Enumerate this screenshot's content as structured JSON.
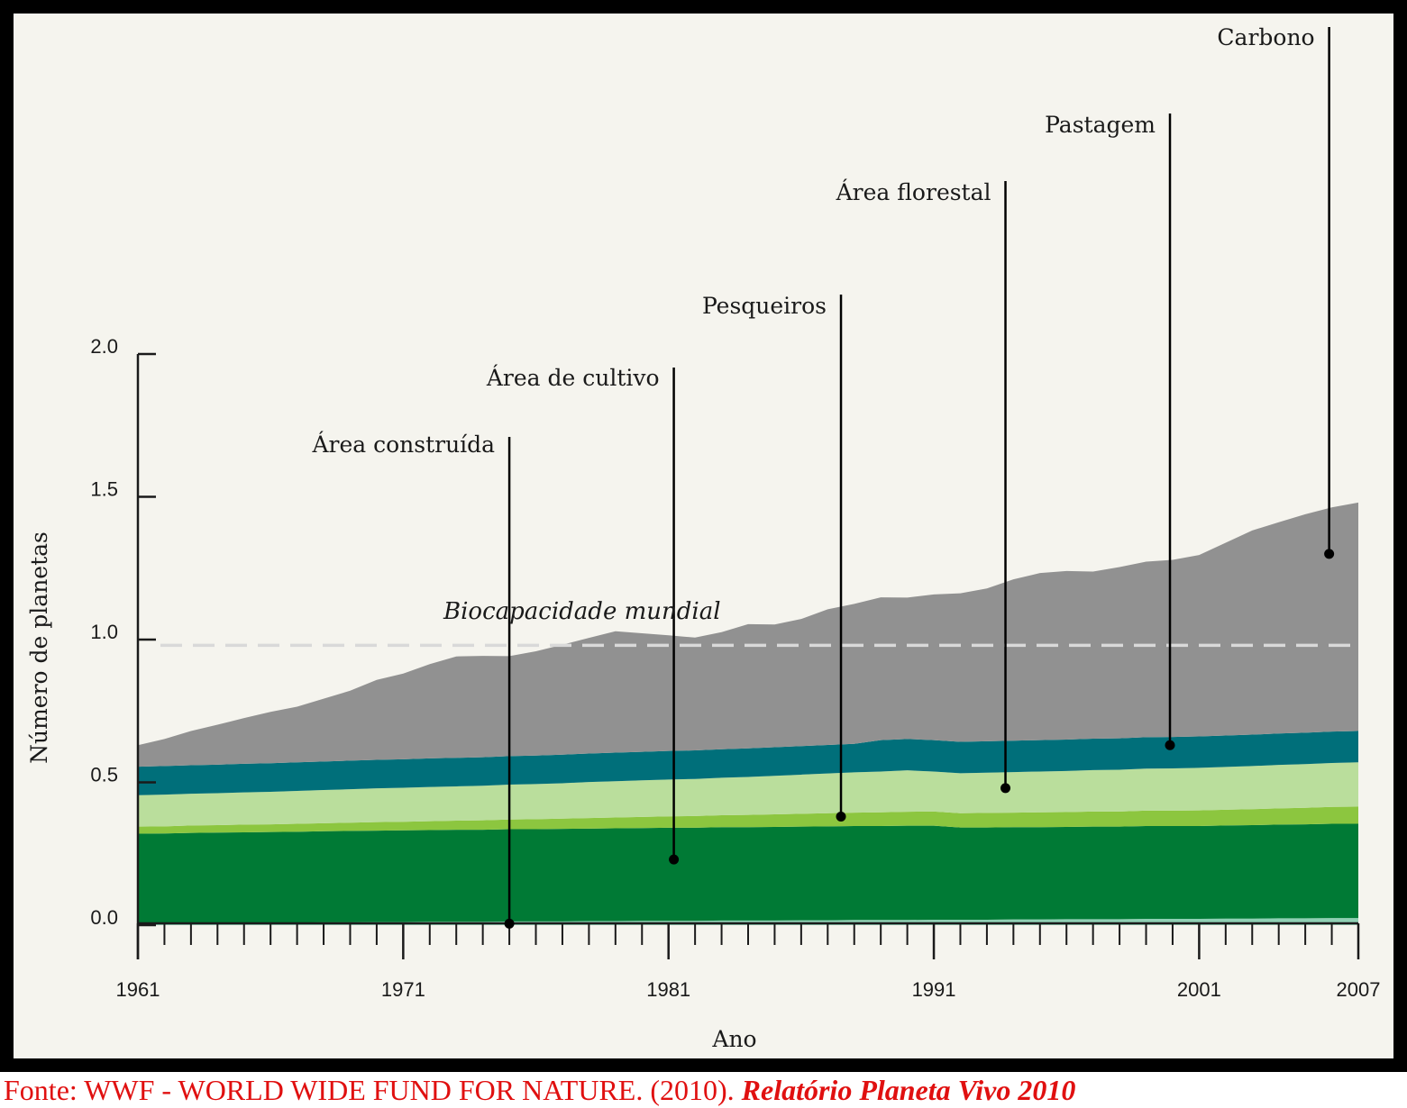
{
  "chart_data": {
    "type": "area",
    "stacked": true,
    "xlabel": "Ano",
    "ylabel": "Número de planetas",
    "xlim": [
      1961,
      2007
    ],
    "ylim": [
      0,
      2.0
    ],
    "x_ticks": [
      1961,
      1971,
      1981,
      1991,
      2001,
      2007
    ],
    "y_ticks": [
      "0.0",
      "0.5",
      "1.0",
      "1.5",
      "2.0"
    ],
    "x": [
      1961,
      1962,
      1963,
      1964,
      1965,
      1966,
      1967,
      1968,
      1969,
      1970,
      1971,
      1972,
      1973,
      1974,
      1975,
      1976,
      1977,
      1978,
      1979,
      1980,
      1981,
      1982,
      1983,
      1984,
      1985,
      1986,
      1987,
      1988,
      1989,
      1990,
      1991,
      1992,
      1993,
      1994,
      1995,
      1996,
      1997,
      1998,
      1999,
      2000,
      2001,
      2002,
      2003,
      2004,
      2005,
      2006,
      2007
    ],
    "series": [
      {
        "name": "Área construída",
        "color": "#8fd0b4",
        "values": [
          0.008,
          0.008,
          0.008,
          0.009,
          0.009,
          0.009,
          0.009,
          0.01,
          0.01,
          0.011,
          0.011,
          0.012,
          0.012,
          0.012,
          0.013,
          0.013,
          0.013,
          0.014,
          0.014,
          0.015,
          0.015,
          0.015,
          0.016,
          0.016,
          0.016,
          0.017,
          0.017,
          0.018,
          0.018,
          0.018,
          0.019,
          0.019,
          0.019,
          0.02,
          0.02,
          0.021,
          0.021,
          0.021,
          0.022,
          0.022,
          0.022,
          0.023,
          0.023,
          0.024,
          0.024,
          0.025,
          0.025
        ]
      },
      {
        "name": "Área de cultivo",
        "color": "#007a35",
        "values": [
          0.312,
          0.313,
          0.315,
          0.315,
          0.316,
          0.317,
          0.318,
          0.319,
          0.32,
          0.32,
          0.321,
          0.321,
          0.322,
          0.322,
          0.323,
          0.323,
          0.324,
          0.324,
          0.325,
          0.325,
          0.326,
          0.326,
          0.327,
          0.327,
          0.328,
          0.328,
          0.329,
          0.329,
          0.329,
          0.33,
          0.329,
          0.323,
          0.323,
          0.323,
          0.323,
          0.323,
          0.324,
          0.324,
          0.325,
          0.325,
          0.325,
          0.326,
          0.327,
          0.328,
          0.329,
          0.33,
          0.33
        ]
      },
      {
        "name": "Pesqueiros",
        "color": "#8cc63f",
        "values": [
          0.025,
          0.025,
          0.026,
          0.026,
          0.027,
          0.027,
          0.028,
          0.028,
          0.029,
          0.03,
          0.03,
          0.031,
          0.032,
          0.033,
          0.034,
          0.035,
          0.036,
          0.037,
          0.038,
          0.039,
          0.04,
          0.041,
          0.042,
          0.043,
          0.044,
          0.045,
          0.046,
          0.047,
          0.048,
          0.049,
          0.05,
          0.05,
          0.051,
          0.051,
          0.052,
          0.052,
          0.053,
          0.053,
          0.054,
          0.054,
          0.055,
          0.055,
          0.056,
          0.057,
          0.058,
          0.059,
          0.06
        ]
      },
      {
        "name": "Área florestal",
        "color": "#bade9c",
        "values": [
          0.11,
          0.111,
          0.111,
          0.112,
          0.113,
          0.114,
          0.115,
          0.116,
          0.117,
          0.118,
          0.119,
          0.12,
          0.12,
          0.121,
          0.122,
          0.123,
          0.124,
          0.126,
          0.127,
          0.128,
          0.129,
          0.13,
          0.131,
          0.133,
          0.135,
          0.137,
          0.139,
          0.141,
          0.143,
          0.145,
          0.14,
          0.14,
          0.141,
          0.142,
          0.143,
          0.144,
          0.145,
          0.146,
          0.147,
          0.148,
          0.149,
          0.15,
          0.151,
          0.152,
          0.153,
          0.154,
          0.155
        ]
      },
      {
        "name": "Pastagem",
        "color": "#006f7a",
        "values": [
          0.1,
          0.1,
          0.1,
          0.1,
          0.1,
          0.1,
          0.1,
          0.1,
          0.1,
          0.1,
          0.1,
          0.1,
          0.1,
          0.1,
          0.1,
          0.1,
          0.1,
          0.1,
          0.1,
          0.1,
          0.1,
          0.1,
          0.1,
          0.1,
          0.1,
          0.1,
          0.1,
          0.1,
          0.11,
          0.11,
          0.11,
          0.11,
          0.11,
          0.11,
          0.11,
          0.11,
          0.11,
          0.11,
          0.11,
          0.11,
          0.11,
          0.11,
          0.11,
          0.11,
          0.11,
          0.11,
          0.11
        ]
      },
      {
        "name": "Carbono",
        "color": "#919191",
        "values": [
          0.075,
          0.095,
          0.12,
          0.14,
          0.16,
          0.18,
          0.195,
          0.22,
          0.245,
          0.28,
          0.3,
          0.33,
          0.355,
          0.355,
          0.35,
          0.365,
          0.385,
          0.405,
          0.425,
          0.415,
          0.405,
          0.395,
          0.41,
          0.435,
          0.43,
          0.445,
          0.475,
          0.49,
          0.5,
          0.495,
          0.51,
          0.52,
          0.535,
          0.565,
          0.585,
          0.59,
          0.585,
          0.6,
          0.615,
          0.62,
          0.635,
          0.675,
          0.715,
          0.74,
          0.765,
          0.785,
          0.8
        ]
      }
    ],
    "reference_line": {
      "label": "Biocapacidade mundial",
      "value": 0.98,
      "style": "dashed"
    },
    "annotations": [
      {
        "series": "Área construída",
        "x": 1975,
        "y": 0.005
      },
      {
        "series": "Área de cultivo",
        "x": 1981.2,
        "y": 0.23
      },
      {
        "series": "Pesqueiros",
        "x": 1987.5,
        "y": 0.38
      },
      {
        "series": "Área florestal",
        "x": 1993.7,
        "y": 0.48
      },
      {
        "series": "Pastagem",
        "x": 1999.9,
        "y": 0.63
      },
      {
        "series": "Carbono",
        "x": 2005.9,
        "y": 1.3
      }
    ],
    "legend": "callout labels",
    "grid": false
  },
  "colors": {
    "background": "#f5f4ee",
    "frame": "#000000",
    "axis": "#1a1a1a",
    "reference_line": "#d9d9d9",
    "source_text": "#e01010"
  },
  "source": {
    "text": "Fonte: WWF - WORLD WIDE FUND FOR NATURE. (2010).",
    "publication": "Relatório Planeta Vivo 2010"
  }
}
